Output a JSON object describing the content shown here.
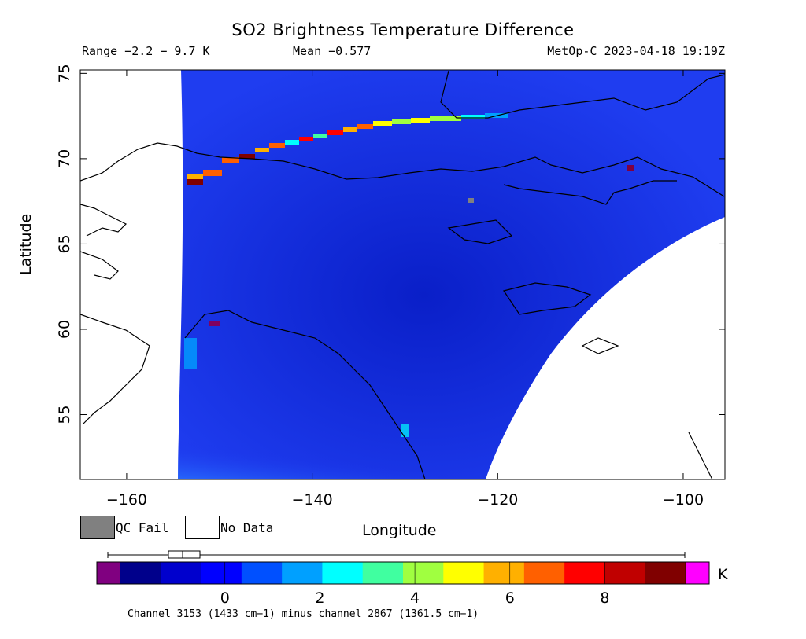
{
  "title": "SO2 Brightness Temperature Difference",
  "stats": {
    "range": "Range −2.2 − 9.7 K",
    "mean": "Mean −0.577",
    "satellite": "MetOp-C 2023-04-18 19:19Z"
  },
  "axes": {
    "xlabel": "Longitude",
    "ylabel": "Latitude",
    "xticks": [
      {
        "value": -160,
        "label": "−160"
      },
      {
        "value": -140,
        "label": "−140"
      },
      {
        "value": -120,
        "label": "−120"
      },
      {
        "value": -100,
        "label": "−100"
      }
    ],
    "yticks": [
      {
        "value": 55,
        "label": "55"
      },
      {
        "value": 60,
        "label": "60"
      },
      {
        "value": 65,
        "label": "65"
      },
      {
        "value": 70,
        "label": "70"
      },
      {
        "value": 75,
        "label": "75"
      }
    ],
    "xlim": [
      -165,
      -95.5
    ],
    "ylim": [
      51.2,
      75.2
    ]
  },
  "legend": {
    "qc_fail": "QC Fail",
    "no_data": "No Data"
  },
  "colorbar": {
    "unit": "K",
    "min": -2.2,
    "max": 9.7,
    "ticks": [
      {
        "value": 0,
        "label": "0"
      },
      {
        "value": 2,
        "label": "2"
      },
      {
        "value": 4,
        "label": "4"
      },
      {
        "value": 6,
        "label": "6"
      },
      {
        "value": 8,
        "label": "8"
      }
    ],
    "underflow_color": "#800080",
    "overflow_color": "#ff00ff",
    "colors": [
      "#00008b",
      "#0000cd",
      "#0000ff",
      "#0050ff",
      "#00a0ff",
      "#00ffff",
      "#40ffa0",
      "#a0ff40",
      "#ffff00",
      "#ffb000",
      "#ff6000",
      "#ff0000",
      "#c00000",
      "#800000"
    ]
  },
  "channel_note": "Channel 3153 (1433 cm−1) minus channel 2867 (1361.5 cm−1)",
  "colors": {
    "background_field": "#1a2ee8",
    "qc_fail": "#808080",
    "coastline": "#000000"
  }
}
